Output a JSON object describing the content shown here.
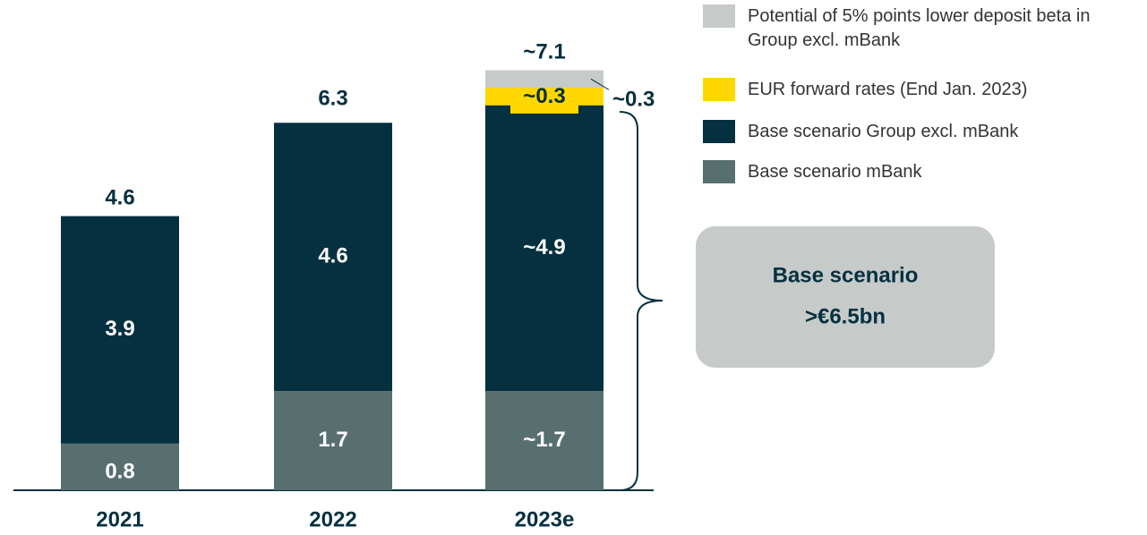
{
  "chart_data": {
    "type": "stacked_bar",
    "categories": [
      "2021",
      "2022",
      "2023e"
    ],
    "series": [
      {
        "name": "Base scenario mBank",
        "color": "#586f70",
        "values": [
          0.8,
          1.7,
          1.7
        ],
        "value_labels": [
          "0.8",
          "1.7",
          "~1.7"
        ]
      },
      {
        "name": "Base scenario Group excl. mBank",
        "color": "#05303f",
        "values": [
          3.9,
          4.6,
          4.9
        ],
        "value_labels": [
          "3.9",
          "4.6",
          "~4.9"
        ]
      },
      {
        "name": "EUR forward rates (End Jan. 2023)",
        "color": "#ffd700",
        "values": [
          null,
          null,
          0.3
        ],
        "value_labels": [
          null,
          null,
          "~0.3"
        ]
      },
      {
        "name": "Potential of 5% points lower deposit beta in Group excl. mBank",
        "color": "#c6cac9",
        "values": [
          null,
          null,
          0.3
        ],
        "value_labels": [
          null,
          null,
          "~0.3"
        ]
      }
    ],
    "totals": [
      4.6,
      6.3,
      7.1
    ],
    "total_labels": [
      "4.6",
      "6.3",
      "~7.1"
    ],
    "annotation": [
      "Base scenario",
      ">€6.5bn"
    ]
  }
}
